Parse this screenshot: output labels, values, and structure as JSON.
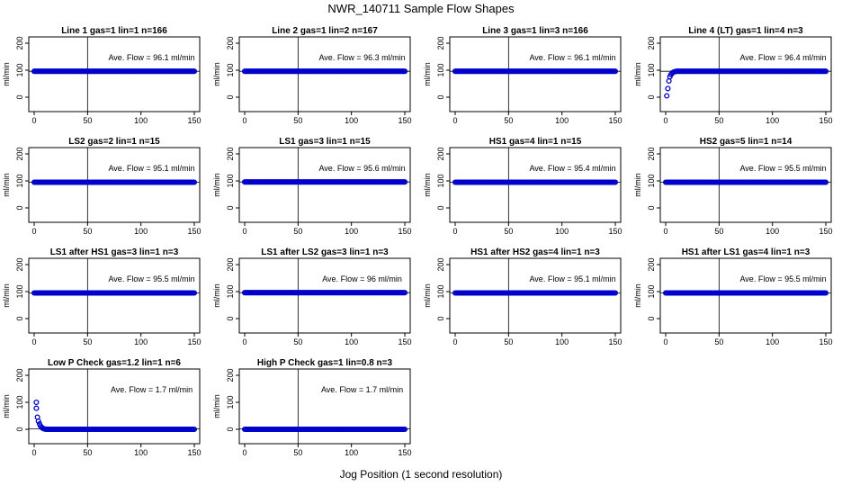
{
  "figure": {
    "title": "NWR_140711  Sample Flow Shapes",
    "xlabel": "Jog Position (1 second resolution)"
  },
  "colors": {
    "points": "#0000cc",
    "axes": "#000000"
  },
  "chart_data": [
    {
      "type": "scatter",
      "title": "Line 1 gas=1 lin=1 n=166",
      "ylabel": "ml/min",
      "annotation": "Ave. Flow = 96.1  ml/min",
      "xlim": [
        0,
        150
      ],
      "ylim": [
        -40,
        210
      ],
      "xticks": [
        0,
        50,
        100,
        150
      ],
      "yticks": [
        0,
        100,
        200
      ],
      "hline": 96,
      "vline": 50,
      "series": [
        {
          "shape": "flat",
          "level": 96,
          "x_end": 150
        }
      ]
    },
    {
      "type": "scatter",
      "title": "Line 2 gas=1 lin=2 n=167",
      "ylabel": "ml/min",
      "annotation": "Ave. Flow = 96.3  ml/min",
      "xlim": [
        0,
        150
      ],
      "ylim": [
        -40,
        210
      ],
      "xticks": [
        0,
        50,
        100,
        150
      ],
      "yticks": [
        0,
        100,
        200
      ],
      "hline": 96,
      "vline": 50,
      "series": [
        {
          "shape": "flat",
          "level": 96,
          "x_end": 150
        }
      ]
    },
    {
      "type": "scatter",
      "title": "Line 3 gas=1 lin=3 n=166",
      "ylabel": "ml/min",
      "annotation": "Ave. Flow = 96.1  ml/min",
      "xlim": [
        0,
        150
      ],
      "ylim": [
        -40,
        210
      ],
      "xticks": [
        0,
        50,
        100,
        150
      ],
      "yticks": [
        0,
        100,
        200
      ],
      "hline": 96,
      "vline": 50,
      "series": [
        {
          "shape": "flat",
          "level": 96,
          "x_end": 150
        }
      ]
    },
    {
      "type": "scatter",
      "title": "Line 4 (LT) gas=1 lin=4 n=3",
      "ylabel": "ml/min",
      "annotation": "Ave. Flow = 96.4  ml/min",
      "xlim": [
        0,
        150
      ],
      "ylim": [
        -40,
        210
      ],
      "xticks": [
        0,
        50,
        100,
        150
      ],
      "yticks": [
        0,
        100,
        200
      ],
      "hline": 96,
      "vline": 50,
      "series": [
        {
          "shape": "rise",
          "level": 96,
          "x_end": 150,
          "points": [
            [
              1,
              5
            ],
            [
              2,
              32
            ],
            [
              3,
              60
            ],
            [
              4,
              76
            ],
            [
              5,
              84
            ],
            [
              6,
              89
            ],
            [
              7,
              92
            ],
            [
              8,
              94
            ],
            [
              9,
              95
            ],
            [
              10,
              96
            ]
          ]
        }
      ]
    },
    {
      "type": "scatter",
      "title": "LS2 gas=2 lin=1 n=15",
      "ylabel": "ml/min",
      "annotation": "Ave. Flow = 95.1  ml/min",
      "xlim": [
        0,
        150
      ],
      "ylim": [
        -40,
        210
      ],
      "xticks": [
        0,
        50,
        100,
        150
      ],
      "yticks": [
        0,
        100,
        200
      ],
      "hline": 95,
      "vline": 50,
      "series": [
        {
          "shape": "flat",
          "level": 95,
          "x_end": 150
        }
      ]
    },
    {
      "type": "scatter",
      "title": "LS1 gas=3 lin=1 n=15",
      "ylabel": "ml/min",
      "annotation": "Ave. Flow = 95.6  ml/min",
      "xlim": [
        0,
        150
      ],
      "ylim": [
        -40,
        210
      ],
      "xticks": [
        0,
        50,
        100,
        150
      ],
      "yticks": [
        0,
        100,
        200
      ],
      "hline": 96,
      "vline": 50,
      "series": [
        {
          "shape": "flat",
          "level": 96,
          "x_end": 150
        }
      ]
    },
    {
      "type": "scatter",
      "title": "HS1 gas=4 lin=1 n=15",
      "ylabel": "ml/min",
      "annotation": "Ave. Flow = 95.4  ml/min",
      "xlim": [
        0,
        150
      ],
      "ylim": [
        -40,
        210
      ],
      "xticks": [
        0,
        50,
        100,
        150
      ],
      "yticks": [
        0,
        100,
        200
      ],
      "hline": 95,
      "vline": 50,
      "series": [
        {
          "shape": "flat",
          "level": 95,
          "x_end": 150
        }
      ]
    },
    {
      "type": "scatter",
      "title": "HS2 gas=5 lin=1 n=14",
      "ylabel": "ml/min",
      "annotation": "Ave. Flow = 95.5  ml/min",
      "xlim": [
        0,
        150
      ],
      "ylim": [
        -40,
        210
      ],
      "xticks": [
        0,
        50,
        100,
        150
      ],
      "yticks": [
        0,
        100,
        200
      ],
      "hline": 95,
      "vline": 50,
      "series": [
        {
          "shape": "flat",
          "level": 95,
          "x_end": 150
        }
      ]
    },
    {
      "type": "scatter",
      "title": "LS1 after HS1 gas=3 lin=1 n=3",
      "ylabel": "ml/min",
      "annotation": "Ave. Flow = 95.5  ml/min",
      "xlim": [
        0,
        150
      ],
      "ylim": [
        -40,
        210
      ],
      "xticks": [
        0,
        50,
        100,
        150
      ],
      "yticks": [
        0,
        100,
        200
      ],
      "hline": 95,
      "vline": 50,
      "series": [
        {
          "shape": "flat",
          "level": 95,
          "x_end": 150
        }
      ]
    },
    {
      "type": "scatter",
      "title": "LS1 after LS2 gas=3 lin=1 n=3",
      "ylabel": "ml/min",
      "annotation": "Ave. Flow = 96  ml/min",
      "xlim": [
        0,
        150
      ],
      "ylim": [
        -40,
        210
      ],
      "xticks": [
        0,
        50,
        100,
        150
      ],
      "yticks": [
        0,
        100,
        200
      ],
      "hline": 96,
      "vline": 50,
      "series": [
        {
          "shape": "flat",
          "level": 96,
          "x_end": 150
        }
      ]
    },
    {
      "type": "scatter",
      "title": "HS1 after HS2 gas=4 lin=1 n=3",
      "ylabel": "ml/min",
      "annotation": "Ave. Flow = 95.1  ml/min",
      "xlim": [
        0,
        150
      ],
      "ylim": [
        -40,
        210
      ],
      "xticks": [
        0,
        50,
        100,
        150
      ],
      "yticks": [
        0,
        100,
        200
      ],
      "hline": 95,
      "vline": 50,
      "series": [
        {
          "shape": "flat",
          "level": 95,
          "x_end": 150
        }
      ]
    },
    {
      "type": "scatter",
      "title": "HS1 after LS1 gas=4 lin=1 n=3",
      "ylabel": "ml/min",
      "annotation": "Ave. Flow = 95.5  ml/min",
      "xlim": [
        0,
        150
      ],
      "ylim": [
        -40,
        210
      ],
      "xticks": [
        0,
        50,
        100,
        150
      ],
      "yticks": [
        0,
        100,
        200
      ],
      "hline": 95,
      "vline": 50,
      "series": [
        {
          "shape": "flat",
          "level": 95,
          "x_end": 150
        }
      ]
    },
    {
      "type": "scatter",
      "title": "Low P Check gas=1.2 lin=1 n=6",
      "ylabel": "ml/min",
      "annotation": "Ave. Flow = 1.7  ml/min",
      "xlim": [
        0,
        150
      ],
      "ylim": [
        -40,
        210
      ],
      "xticks": [
        0,
        50,
        100,
        150
      ],
      "yticks": [
        0,
        100,
        200
      ],
      "hline": 2,
      "vline": 50,
      "series": [
        {
          "shape": "decay",
          "level": 0,
          "x_end": 150,
          "points": [
            [
              2,
              100
            ],
            [
              2,
              78
            ],
            [
              3,
              45
            ],
            [
              4,
              30
            ],
            [
              5,
              20
            ],
            [
              6,
              12
            ],
            [
              7,
              7
            ],
            [
              8,
              4
            ],
            [
              9,
              2
            ],
            [
              10,
              1
            ]
          ]
        }
      ]
    },
    {
      "type": "scatter",
      "title": "High P Check gas=1 lin=0.8 n=3",
      "ylabel": "ml/min",
      "annotation": "Ave. Flow = 1.7  ml/min",
      "xlim": [
        0,
        150
      ],
      "ylim": [
        -40,
        210
      ],
      "xticks": [
        0,
        50,
        100,
        150
      ],
      "yticks": [
        0,
        100,
        200
      ],
      "hline": 2,
      "vline": 50,
      "series": [
        {
          "shape": "flat",
          "level": 0,
          "x_end": 150
        }
      ]
    }
  ]
}
